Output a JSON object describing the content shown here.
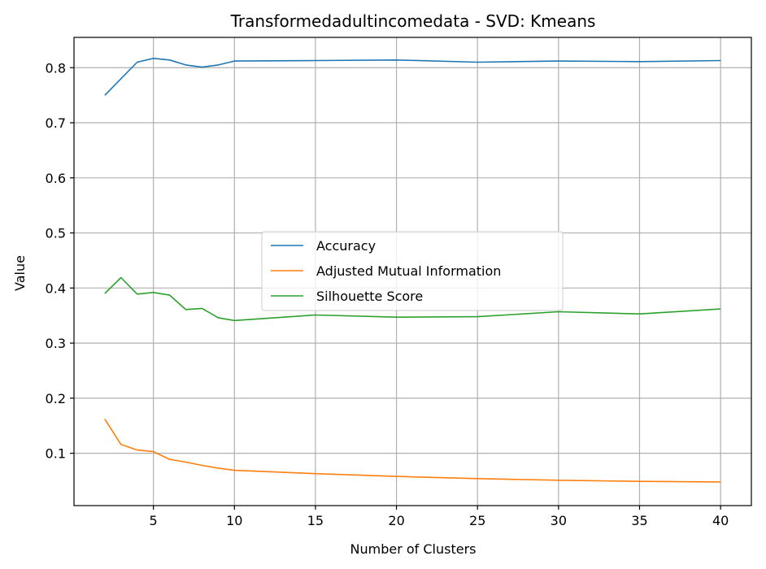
{
  "chart_data": {
    "type": "line",
    "title": "Transformedadultincomedata - SVD: Kmeans",
    "xlabel": "Number of Clusters",
    "ylabel": "Value",
    "xlim": [
      0.1,
      41.9
    ],
    "ylim": [
      0.005,
      0.855
    ],
    "xticks": [
      5,
      10,
      15,
      20,
      25,
      30,
      35,
      40
    ],
    "yticks": [
      0.1,
      0.2,
      0.3,
      0.4,
      0.5,
      0.6,
      0.7,
      0.8
    ],
    "grid": true,
    "legend_position": "center",
    "x": [
      2,
      3,
      4,
      5,
      6,
      7,
      8,
      9,
      10,
      15,
      20,
      25,
      30,
      35,
      40
    ],
    "series": [
      {
        "name": "Accuracy",
        "color": "#1f77b4",
        "values": [
          0.75,
          0.78,
          0.81,
          0.817,
          0.814,
          0.805,
          0.801,
          0.805,
          0.812,
          0.813,
          0.814,
          0.81,
          0.812,
          0.811,
          0.813
        ]
      },
      {
        "name": "Adjusted Mutual Information",
        "color": "#ff7f0e",
        "values": [
          0.162,
          0.116,
          0.106,
          0.103,
          0.089,
          0.084,
          0.078,
          0.073,
          0.069,
          0.063,
          0.058,
          0.054,
          0.051,
          0.049,
          0.048
        ]
      },
      {
        "name": "Silhouette Score",
        "color": "#2ca02c",
        "values": [
          0.39,
          0.419,
          0.389,
          0.392,
          0.387,
          0.361,
          0.363,
          0.346,
          0.341,
          0.351,
          0.347,
          0.348,
          0.357,
          0.353,
          0.362
        ]
      }
    ]
  }
}
